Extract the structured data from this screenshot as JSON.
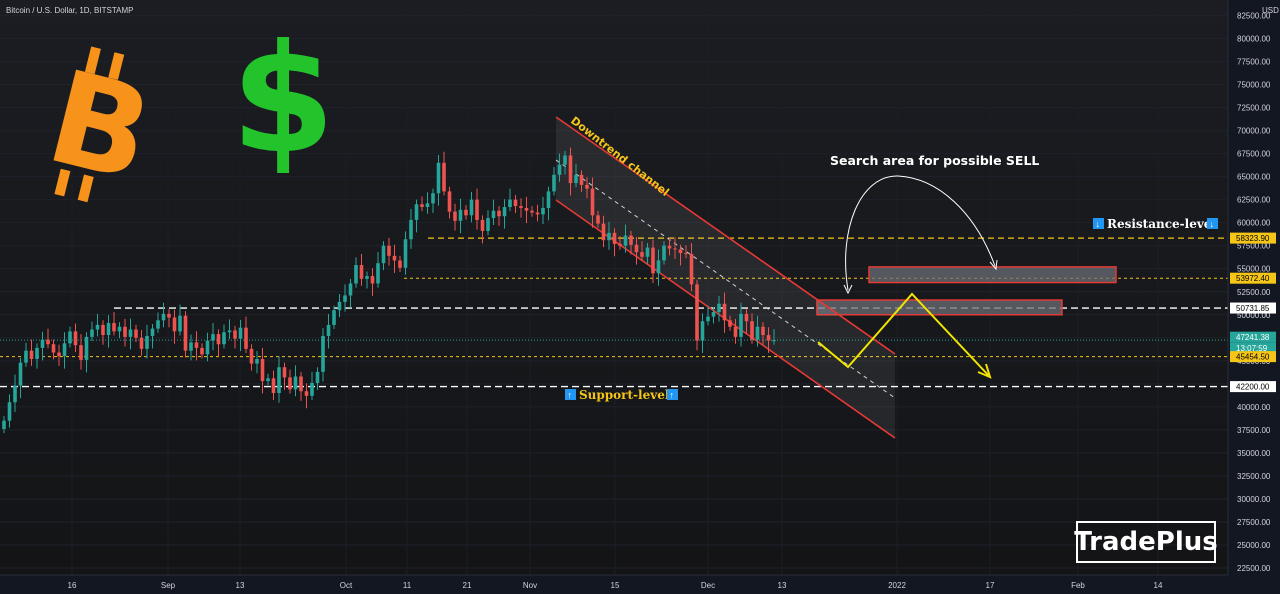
{
  "header": {
    "title": "Bitcoin / U.S. Dollar, 1D, BITSTAMP"
  },
  "brand": {
    "logo_text": "TradePlus"
  },
  "colors": {
    "up": "#26a69a",
    "down": "#ef5350",
    "bg": "#131722",
    "resistance": "#f5c518",
    "support": "#ffffff",
    "channel": "#e53935",
    "arrow": "#f2e600"
  },
  "chart_data": {
    "type": "candlestick",
    "currency": "USD",
    "y_ticks": [
      82500,
      80000,
      77500,
      75000,
      72500,
      70000,
      67500,
      65000,
      62500,
      60000,
      57500,
      55000,
      52500,
      50000,
      47500,
      45000,
      42500,
      40000,
      37500,
      35000,
      32500,
      30000,
      27500,
      25000,
      22500
    ],
    "x_ticks": [
      "16",
      "Sep",
      "13",
      "Oct",
      "11",
      "21",
      "Nov",
      "15",
      "Dec",
      "13",
      "2022",
      "17",
      "Feb",
      "14"
    ],
    "price_labels": [
      {
        "value": "58323.90",
        "kind": "resistance"
      },
      {
        "value": "53972.40",
        "kind": "resistance"
      },
      {
        "value": "50731.85",
        "kind": "level"
      },
      {
        "value": "47241.38",
        "kind": "last"
      },
      {
        "value": "13:07:59",
        "kind": "countdown"
      },
      {
        "value": "45454.50",
        "kind": "level"
      },
      {
        "value": "42200.00",
        "kind": "support"
      }
    ],
    "annotations": {
      "channel_label": "Downtrend channel",
      "search_label": "Search area for possible SELL",
      "resistance_label": "Resistance-level",
      "support_label": "Support-level"
    },
    "levels": {
      "resistance_top": 58323.9,
      "resistance_mid": 53972.4,
      "mid": 50731.85,
      "last": 47241.38,
      "near": 45454.5,
      "support": 42200
    },
    "closes": [
      38500,
      40500,
      42300,
      44800,
      46100,
      45200,
      46400,
      47300,
      46800,
      45900,
      45500,
      46900,
      48200,
      46700,
      45100,
      47600,
      48400,
      48900,
      47800,
      49100,
      48200,
      48700,
      47600,
      48400,
      47500,
      46300,
      47700,
      48500,
      49400,
      50100,
      49700,
      48200,
      49900,
      46100,
      47000,
      46400,
      45700,
      47200,
      47900,
      46800,
      48100,
      48300,
      47400,
      48600,
      46300,
      44700,
      45200,
      42800,
      43100,
      41500,
      44300,
      43200,
      41900,
      43300,
      41700,
      41200,
      42600,
      43800,
      47700,
      48900,
      50500,
      51400,
      52100,
      53400,
      55400,
      53900,
      54200,
      53400,
      55600,
      57500,
      56400,
      55900,
      55100,
      58200,
      60300,
      62000,
      61700,
      62100,
      63200,
      66500,
      63400,
      61200,
      60200,
      61400,
      60800,
      62500,
      60300,
      59100,
      60500,
      61300,
      60700,
      61700,
      62500,
      61800,
      61600,
      61300,
      61100,
      60900,
      61600,
      63400,
      65200,
      66300,
      67300,
      64300,
      65200,
      64100,
      63700,
      60800,
      59900,
      58100,
      58900,
      57700,
      57500,
      58600,
      57600,
      56800,
      56300,
      57300,
      54500,
      55900,
      57500,
      57200,
      57100,
      56700,
      56600,
      53300,
      47200,
      49300,
      49800,
      50300,
      51200,
      49400,
      48700,
      47600,
      50100,
      49300,
      47300,
      48700,
      47800,
      47200,
      47241.38
    ]
  }
}
